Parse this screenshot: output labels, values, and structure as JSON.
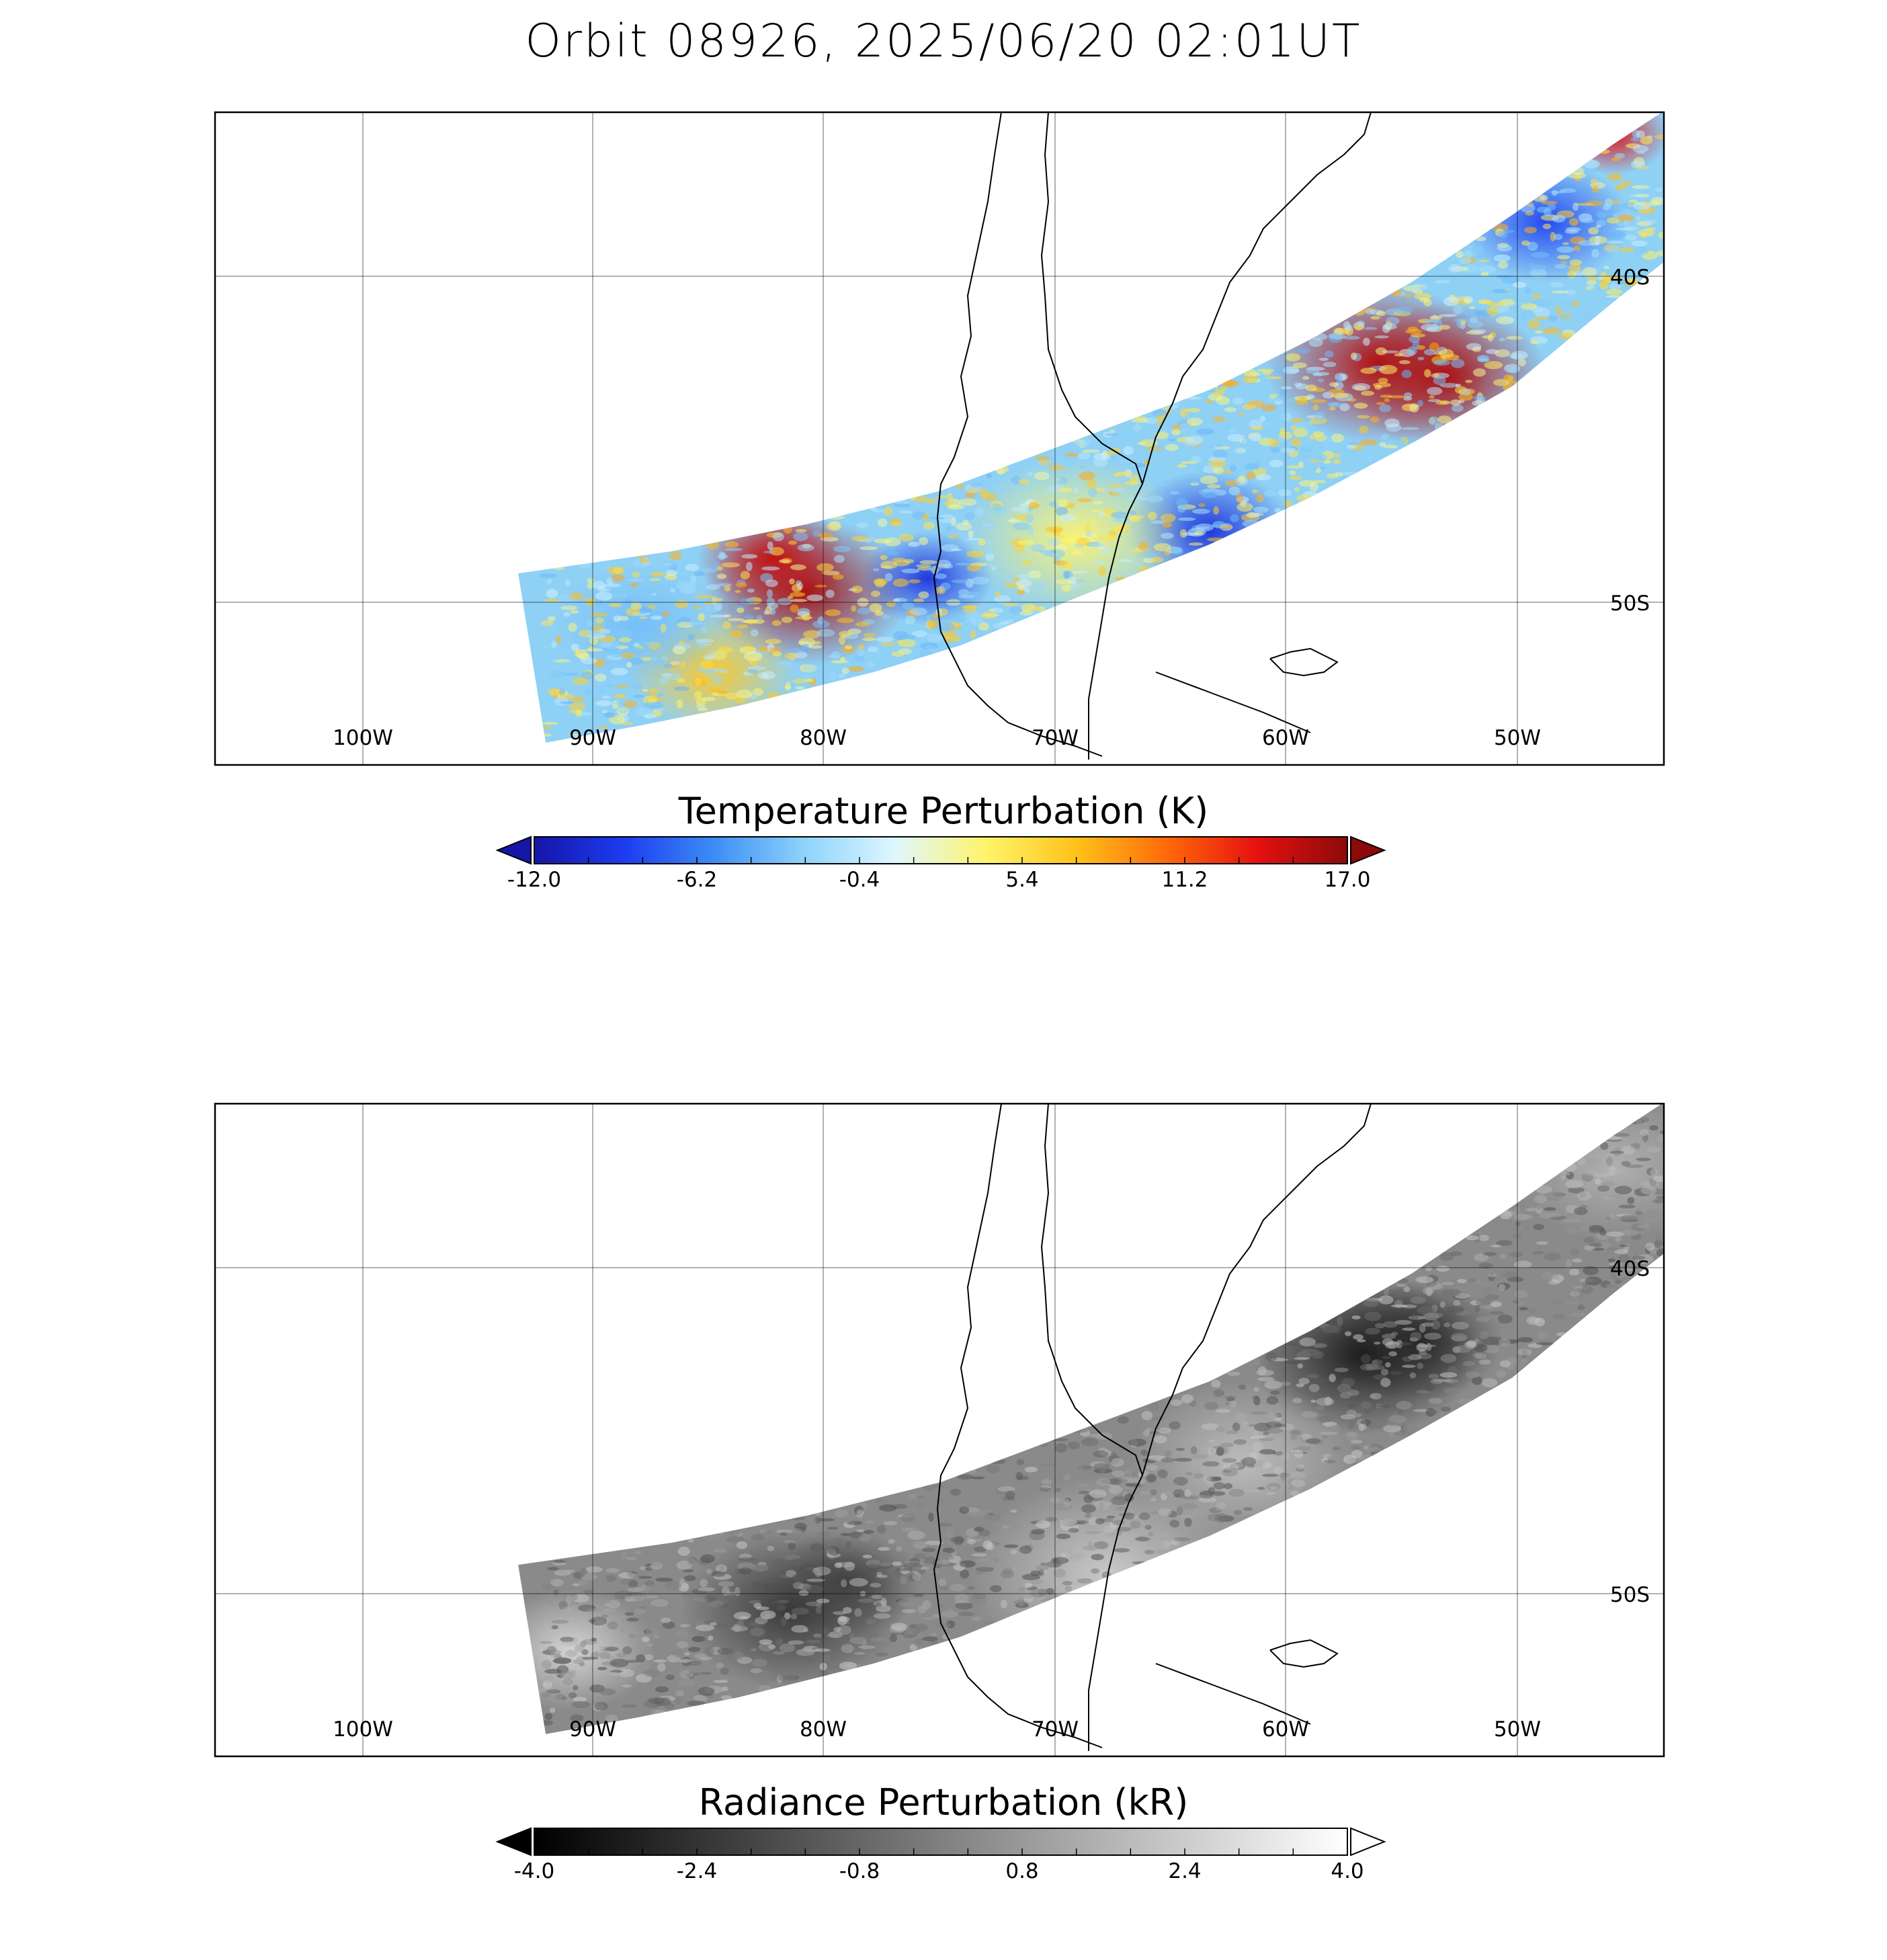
{
  "title": "Orbit 08926, 2025/06/20 02:01UT",
  "panels": [
    {
      "id": "temperature",
      "colorbar_title": "Temperature Perturbation (K)",
      "colorbar_ticks": [
        "-12.0",
        "-6.2",
        "-0.4",
        "5.4",
        "11.2",
        "17.0"
      ],
      "colormap": [
        "#1515a8",
        "#1c3cf0",
        "#3d8ef5",
        "#8ed4fb",
        "#dff7ff",
        "#fff46a",
        "#ffc21a",
        "#ff6a0a",
        "#e61010",
        "#8c0a0a"
      ],
      "swath_style": "color"
    },
    {
      "id": "radiance",
      "colorbar_title": "Radiance Perturbation (kR)",
      "colorbar_ticks": [
        "-4.0",
        "-2.4",
        "-0.8",
        "0.8",
        "2.4",
        "4.0"
      ],
      "colormap": [
        "#000000",
        "#ffffff"
      ],
      "swath_style": "gray"
    }
  ],
  "map": {
    "lon_labels": [
      "100W",
      "90W",
      "80W",
      "70W",
      "60W",
      "50W"
    ],
    "lat_labels": [
      "40S",
      "50S"
    ]
  }
}
